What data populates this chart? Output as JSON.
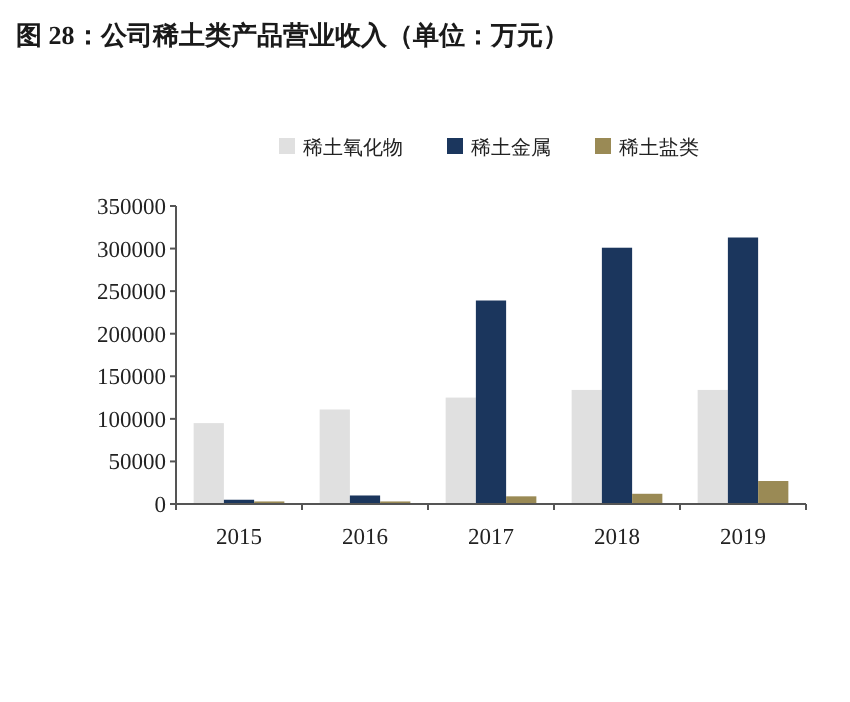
{
  "chart_data": {
    "type": "bar",
    "title": "图 28：公司稀土类产品营业收入（单位：万元）",
    "categories": [
      "2015",
      "2016",
      "2017",
      "2018",
      "2019"
    ],
    "series": [
      {
        "name": "稀土氧化物",
        "color": "#e0e0e0",
        "values": [
          95000,
          111000,
          125000,
          134000,
          134000
        ]
      },
      {
        "name": "稀土金属",
        "color": "#1b365d",
        "values": [
          5000,
          10000,
          239000,
          301000,
          313000
        ]
      },
      {
        "name": "稀土盐类",
        "color": "#9a8a55",
        "values": [
          3000,
          3000,
          9000,
          12000,
          27000
        ]
      }
    ],
    "ylim": [
      0,
      350000
    ],
    "yticks": [
      0,
      50000,
      100000,
      150000,
      200000,
      250000,
      300000,
      350000
    ],
    "grid": false,
    "legend": "top"
  }
}
